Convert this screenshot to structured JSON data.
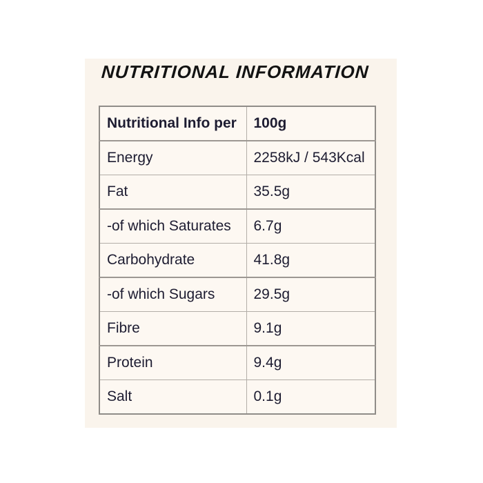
{
  "page": {
    "background_color": "#ffffff",
    "panel_background_color": "#faf4ec",
    "text_color": "#1d1c31",
    "outer_border_color": "#8f8c88",
    "inner_border_color": "#b2ada7"
  },
  "title": "NUTRITIONAL INFORMATION",
  "table": {
    "header": {
      "label": "Nutritional Info per",
      "value": "100g"
    },
    "rows": [
      {
        "label": "Energy",
        "value": "2258kJ / 543Kcal"
      },
      {
        "label": "Fat",
        "value": "35.5g"
      },
      {
        "label": "-of which Saturates",
        "value": "6.7g"
      },
      {
        "label": "Carbohydrate",
        "value": "41.8g"
      },
      {
        "label": "-of which Sugars",
        "value": "29.5g"
      },
      {
        "label": "Fibre",
        "value": "9.1g"
      },
      {
        "label": "Protein",
        "value": "9.4g"
      },
      {
        "label": "Salt",
        "value": "0.1g"
      }
    ]
  }
}
